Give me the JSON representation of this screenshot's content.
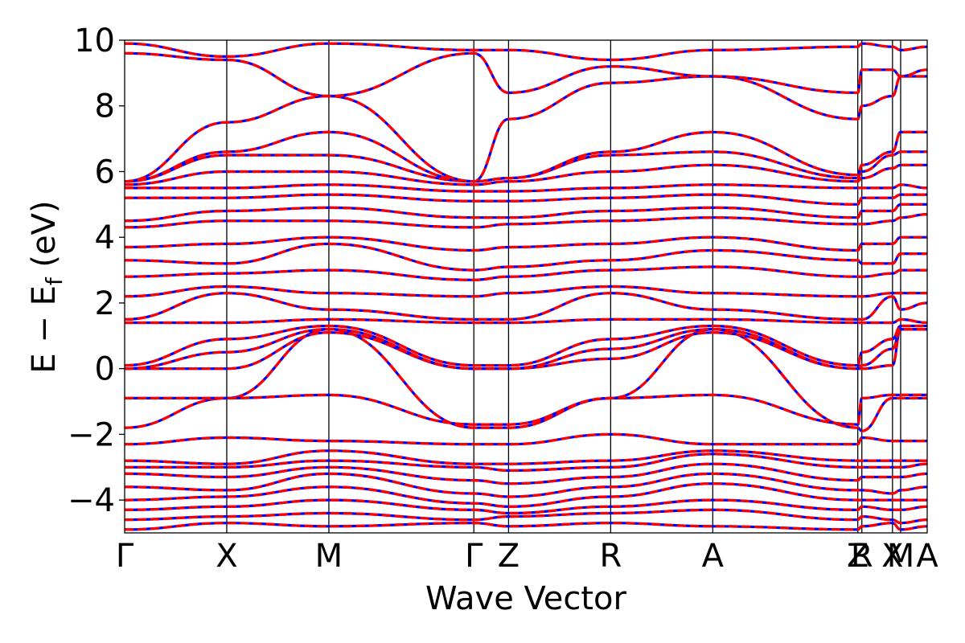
{
  "chart_data": {
    "type": "line",
    "xlabel": "Wave Vector",
    "ylabel": "E − E",
    "ylabel_sub": "f",
    "ylabel_unit": " (eV)",
    "ylim": [
      -5,
      10
    ],
    "yticks": [
      -4,
      -2,
      0,
      2,
      4,
      6,
      8,
      10
    ],
    "ytick_labels": [
      "−4",
      "−2",
      "0",
      "2",
      "4",
      "6",
      "8",
      "10"
    ],
    "high_symmetry_points": [
      {
        "label": "Γ",
        "k": 0.0
      },
      {
        "label": "X",
        "k": 0.5
      },
      {
        "label": "M",
        "k": 1.0
      },
      {
        "label": "Γ",
        "k": 1.71
      },
      {
        "label": "Z",
        "k": 1.88
      },
      {
        "label": "R",
        "k": 2.38
      },
      {
        "label": "A",
        "k": 2.88
      },
      {
        "label": "Z",
        "k": 3.59
      },
      {
        "label": "R",
        "k": 3.61
      },
      {
        "label": "X",
        "k": 3.76
      },
      {
        "label": "M",
        "k": 3.8
      },
      {
        "label": "A",
        "k": 3.93
      }
    ],
    "series_styles": [
      {
        "style": "solid",
        "color": "#0000ff"
      },
      {
        "style": "dashed",
        "color": "#ff0000"
      }
    ],
    "series": [
      {
        "band": 1,
        "energies": [
          -4.9,
          -4.7,
          -4.8,
          -4.7,
          -4.8,
          -4.7,
          -4.8,
          -4.9,
          -4.8,
          -4.7,
          -4.9,
          -4.8
        ]
      },
      {
        "band": 2,
        "energies": [
          -4.6,
          -4.5,
          -4.4,
          -4.6,
          -4.5,
          -4.4,
          -4.3,
          -4.6,
          -4.5,
          -4.6,
          -4.7,
          -4.6
        ]
      },
      {
        "band": 3,
        "energies": [
          -4.3,
          -4.2,
          -4.0,
          -4.3,
          -4.4,
          -4.2,
          -4.0,
          -4.3,
          -4.2,
          -4.3,
          -4.3,
          -4.2
        ]
      },
      {
        "band": 4,
        "energies": [
          -4.0,
          -3.9,
          -3.6,
          -4.1,
          -4.2,
          -3.9,
          -3.5,
          -4.0,
          -4.0,
          -4.0,
          -4.0,
          -4.0
        ]
      },
      {
        "band": 5,
        "energies": [
          -3.6,
          -3.7,
          -3.2,
          -3.8,
          -3.9,
          -3.6,
          -3.2,
          -3.7,
          -3.7,
          -3.8,
          -3.7,
          -3.6
        ]
      },
      {
        "band": 6,
        "energies": [
          -3.2,
          -3.3,
          -3.0,
          -3.4,
          -3.5,
          -3.3,
          -2.9,
          -3.4,
          -3.3,
          -3.3,
          -3.3,
          -3.2
        ]
      },
      {
        "band": 7,
        "energies": [
          -3.0,
          -3.0,
          -2.8,
          -3.0,
          -3.1,
          -3.0,
          -2.6,
          -3.0,
          -3.0,
          -3.0,
          -3.0,
          -2.9
        ]
      },
      {
        "band": 8,
        "energies": [
          -2.8,
          -2.9,
          -2.5,
          -2.9,
          -2.9,
          -2.8,
          -2.5,
          -2.8,
          -2.8,
          -2.8,
          -2.8,
          -2.8
        ]
      },
      {
        "band": 9,
        "energies": [
          -2.3,
          -2.1,
          -2.2,
          -2.3,
          -2.3,
          -2.0,
          -2.3,
          -2.3,
          -2.1,
          -2.2,
          -2.2,
          -2.2
        ]
      },
      {
        "band": 10,
        "energies": [
          -1.8,
          -0.9,
          1.2,
          -1.8,
          -1.8,
          -0.9,
          1.2,
          -1.8,
          -1.9,
          -0.9,
          -0.9,
          -0.9
        ]
      },
      {
        "band": 11,
        "energies": [
          -0.9,
          -0.9,
          -0.8,
          -1.7,
          -1.7,
          -0.9,
          -0.8,
          -1.7,
          -0.9,
          -0.8,
          -0.8,
          -0.8
        ]
      },
      {
        "band": 12,
        "energies": [
          0.0,
          0.0,
          1.1,
          0.0,
          0.0,
          0.3,
          1.1,
          0.0,
          0.0,
          0.1,
          1.2,
          1.2
        ]
      },
      {
        "band": 13,
        "energies": [
          0.0,
          0.5,
          1.2,
          0.0,
          0.0,
          0.6,
          1.2,
          0.0,
          0.1,
          0.6,
          1.2,
          1.2
        ]
      },
      {
        "band": 14,
        "energies": [
          0.1,
          0.9,
          1.3,
          0.1,
          0.1,
          0.9,
          1.3,
          0.1,
          0.5,
          0.9,
          1.3,
          1.3
        ]
      },
      {
        "band": 15,
        "energies": [
          1.4,
          1.4,
          1.5,
          1.4,
          1.4,
          1.5,
          1.5,
          1.4,
          1.4,
          1.4,
          1.5,
          1.4
        ]
      },
      {
        "band": 16,
        "energies": [
          1.5,
          2.3,
          1.8,
          1.5,
          1.5,
          2.3,
          1.8,
          1.5,
          1.5,
          2.2,
          1.8,
          2.0
        ]
      },
      {
        "band": 17,
        "energies": [
          2.2,
          2.5,
          2.3,
          2.2,
          2.3,
          2.5,
          2.3,
          2.2,
          2.2,
          2.3,
          2.3,
          2.3
        ]
      },
      {
        "band": 18,
        "energies": [
          2.8,
          2.9,
          3.0,
          2.7,
          2.8,
          3.0,
          3.1,
          2.8,
          2.8,
          2.9,
          3.0,
          3.0
        ]
      },
      {
        "band": 19,
        "energies": [
          3.3,
          3.2,
          3.8,
          3.0,
          3.1,
          3.3,
          3.6,
          3.3,
          3.2,
          3.2,
          3.5,
          3.5
        ]
      },
      {
        "band": 20,
        "energies": [
          3.7,
          3.8,
          4.0,
          3.6,
          3.7,
          3.8,
          4.0,
          3.6,
          3.8,
          3.8,
          4.0,
          4.0
        ]
      },
      {
        "band": 21,
        "energies": [
          4.3,
          4.5,
          4.5,
          4.3,
          4.4,
          4.5,
          4.6,
          4.4,
          4.4,
          4.5,
          4.6,
          4.7
        ]
      },
      {
        "band": 22,
        "energies": [
          4.5,
          4.8,
          4.9,
          4.6,
          4.6,
          4.8,
          4.9,
          4.6,
          4.8,
          4.8,
          5.0,
          5.0
        ]
      },
      {
        "band": 23,
        "energies": [
          5.2,
          5.2,
          5.3,
          5.1,
          5.1,
          5.2,
          5.3,
          5.0,
          5.2,
          5.2,
          5.3,
          5.3
        ]
      },
      {
        "band": 24,
        "energies": [
          5.5,
          5.5,
          5.6,
          5.4,
          5.4,
          5.5,
          5.6,
          5.5,
          5.5,
          5.5,
          5.6,
          5.5
        ]
      },
      {
        "band": 25,
        "energies": [
          5.6,
          6.0,
          6.0,
          5.6,
          5.7,
          6.0,
          6.2,
          5.7,
          5.8,
          6.1,
          6.2,
          6.2
        ]
      },
      {
        "band": 26,
        "energies": [
          5.7,
          6.5,
          6.5,
          5.7,
          5.8,
          6.5,
          6.6,
          5.8,
          6.0,
          6.5,
          6.6,
          6.6
        ]
      },
      {
        "band": 27,
        "energies": [
          5.7,
          6.6,
          7.2,
          5.7,
          5.8,
          6.6,
          7.2,
          5.9,
          6.2,
          6.6,
          7.2,
          7.2
        ]
      },
      {
        "band": 28,
        "energies": [
          5.7,
          7.5,
          8.3,
          5.7,
          7.6,
          8.7,
          8.9,
          7.6,
          8.0,
          8.3,
          8.9,
          8.9
        ]
      },
      {
        "band": 29,
        "energies": [
          9.6,
          9.4,
          8.3,
          9.6,
          8.4,
          9.2,
          8.9,
          8.4,
          9.1,
          9.1,
          8.9,
          9.1
        ]
      },
      {
        "band": 30,
        "energies": [
          9.9,
          9.5,
          9.9,
          9.7,
          9.7,
          9.4,
          9.7,
          9.8,
          9.9,
          9.8,
          9.7,
          9.8
        ]
      }
    ]
  }
}
